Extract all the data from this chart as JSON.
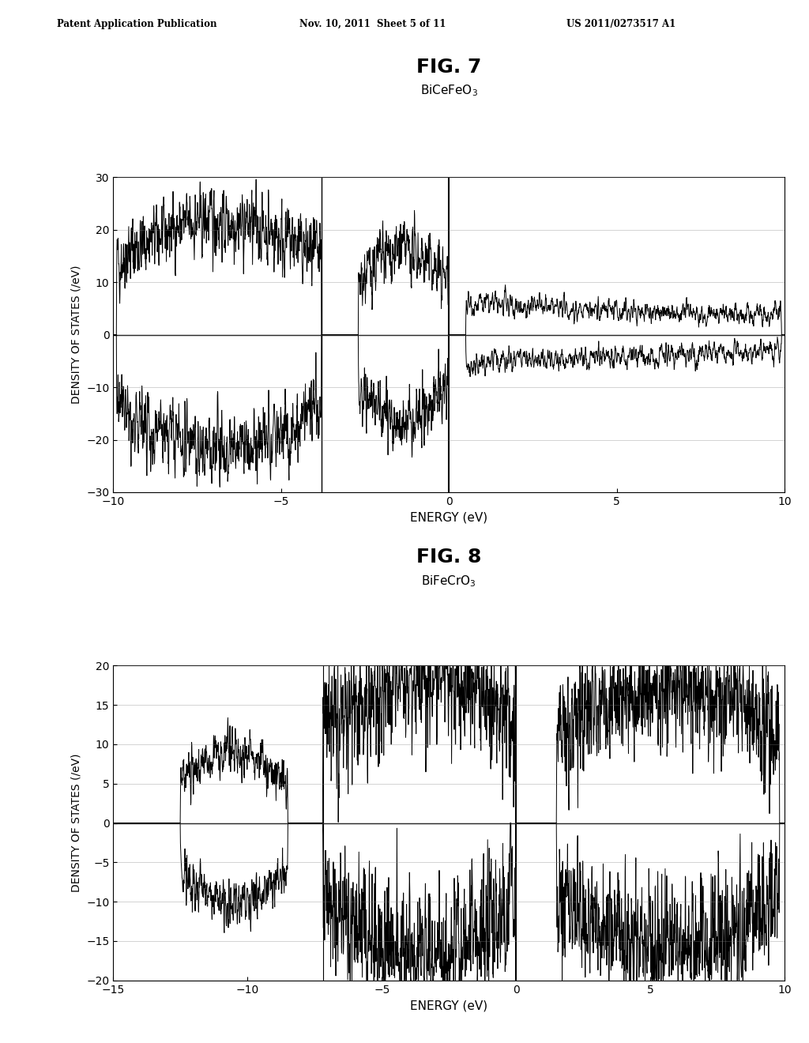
{
  "header_left": "Patent Application Publication",
  "header_mid": "Nov. 10, 2011  Sheet 5 of 11",
  "header_right": "US 2011/0273517 A1",
  "fig7_title": "FIG. 7",
  "fig7_subtitle": "BiCeFeO$_3$",
  "fig7_xlabel": "ENERGY (eV)",
  "fig7_ylabel": "DENSITY OF STATES (/eV)",
  "fig7_xlim": [
    -10,
    10
  ],
  "fig7_ylim": [
    -30,
    30
  ],
  "fig7_xticks": [
    -10,
    -5,
    0,
    5,
    10
  ],
  "fig7_yticks": [
    -30,
    -20,
    -10,
    0,
    10,
    20,
    30
  ],
  "fig8_title": "FIG. 8",
  "fig8_subtitle": "BiFeCrO$_3$",
  "fig8_xlabel": "ENERGY (eV)",
  "fig8_ylabel": "DENSITY OF STATES (/eV)",
  "fig8_xlim": [
    -15,
    10
  ],
  "fig8_ylim": [
    -20,
    20
  ],
  "fig8_xticks": [
    -15,
    -10,
    -5,
    0,
    5,
    10
  ],
  "fig8_yticks": [
    -20,
    -15,
    -10,
    -5,
    0,
    5,
    10,
    15,
    20
  ],
  "line_color": "#000000",
  "bg_color": "#ffffff"
}
